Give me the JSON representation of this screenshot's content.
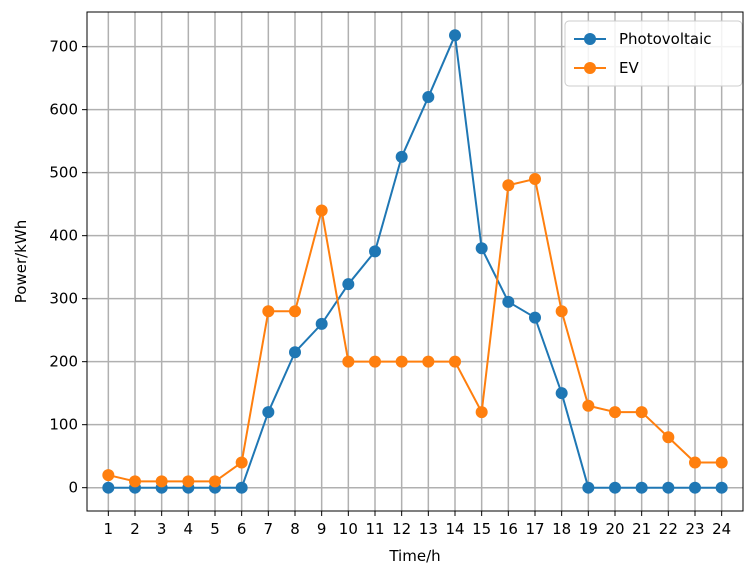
{
  "chart_data": {
    "type": "line",
    "title": "",
    "xlabel": "Time/h",
    "ylabel": "Power/kWh",
    "x": [
      1,
      2,
      3,
      4,
      5,
      6,
      7,
      8,
      9,
      10,
      11,
      12,
      13,
      14,
      15,
      16,
      17,
      18,
      19,
      20,
      21,
      22,
      23,
      24
    ],
    "x_ticks": [
      "1",
      "2",
      "3",
      "4",
      "5",
      "6",
      "7",
      "8",
      "9",
      "10",
      "11",
      "12",
      "13",
      "14",
      "15",
      "16",
      "17",
      "18",
      "19",
      "20",
      "21",
      "22",
      "23",
      "24"
    ],
    "xlim": [
      0.2,
      24.8
    ],
    "ylim": [
      -37,
      755
    ],
    "y_ticks": [
      0,
      100,
      200,
      300,
      400,
      500,
      600,
      700
    ],
    "grid": true,
    "legend_position": "top-right",
    "series": [
      {
        "name": "Photovoltaic",
        "color": "#1f77b4",
        "marker": "circle",
        "values": [
          0,
          0,
          0,
          0,
          0,
          0,
          120,
          215,
          260,
          323,
          375,
          525,
          620,
          718,
          380,
          295,
          270,
          150,
          0,
          0,
          0,
          0,
          0,
          0
        ]
      },
      {
        "name": "EV",
        "color": "#ff7f0e",
        "marker": "circle",
        "values": [
          20,
          10,
          10,
          10,
          10,
          40,
          280,
          280,
          440,
          200,
          200,
          200,
          200,
          200,
          120,
          480,
          490,
          280,
          130,
          120,
          120,
          80,
          40,
          40
        ]
      }
    ]
  }
}
